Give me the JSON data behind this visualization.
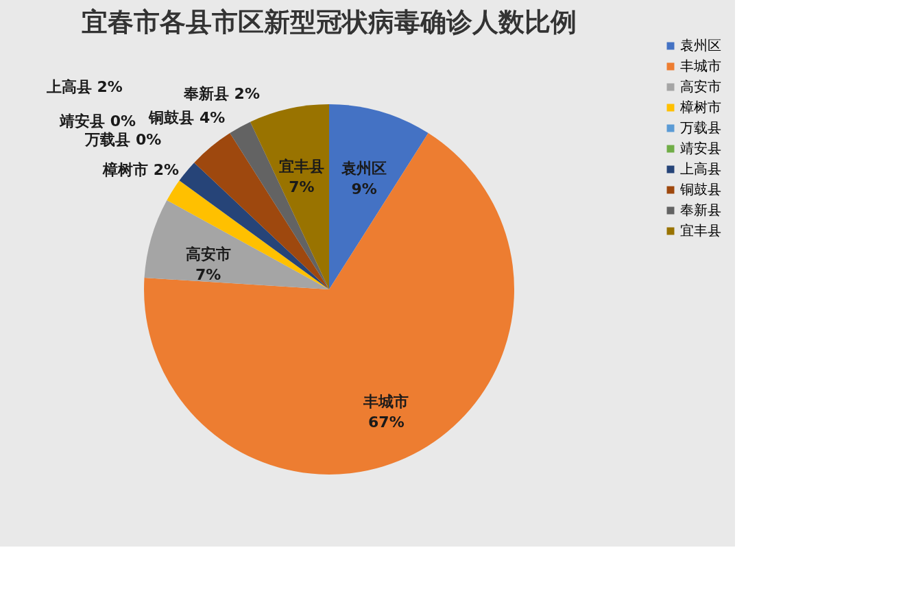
{
  "chart_data": {
    "type": "pie",
    "title": "宜春市各县市区新型冠状病毒确诊人数比例",
    "categories": [
      "袁州区",
      "丰城市",
      "高安市",
      "樟树市",
      "万载县",
      "靖安县",
      "上高县",
      "铜鼓县",
      "奉新县",
      "宜丰县"
    ],
    "values": [
      9,
      67,
      7,
      2,
      0,
      0,
      2,
      4,
      2,
      7
    ],
    "value_labels": [
      "9%",
      "67%",
      "7%",
      "2%",
      "0%",
      "0%",
      "2%",
      "4%",
      "2%",
      "7%"
    ],
    "colors": [
      "#4472c4",
      "#ed7d31",
      "#a5a5a5",
      "#ffc000",
      "#5b9bd5",
      "#70ad47",
      "#264478",
      "#9e480e",
      "#636363",
      "#997300"
    ],
    "legend": "right"
  }
}
